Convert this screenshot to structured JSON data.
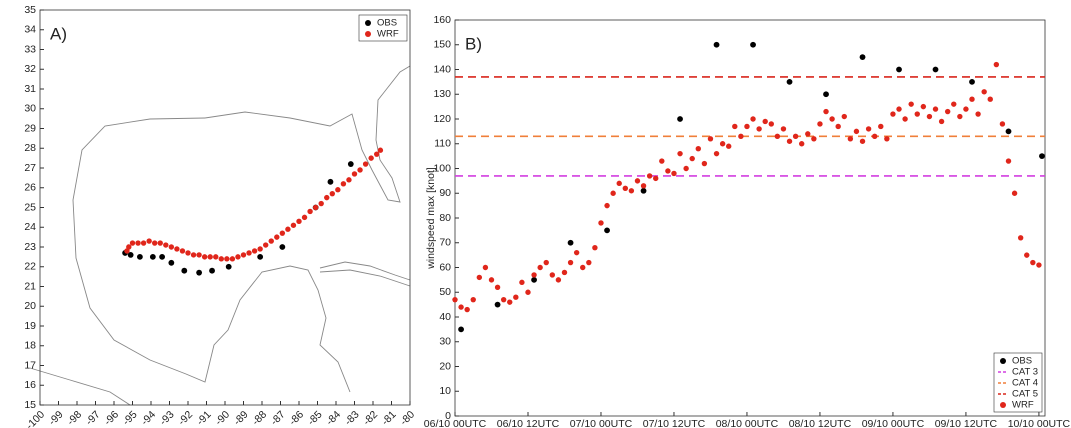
{
  "chart_data": [
    {
      "type": "scatter",
      "panel_label": "A)",
      "xlim": [
        -100,
        -80
      ],
      "ylim": [
        15,
        35
      ],
      "xticks": [
        -100,
        -99,
        -98,
        -97,
        -96,
        -95,
        -94,
        -93,
        -92,
        -91,
        -90,
        -89,
        -88,
        -87,
        -86,
        -85,
        -84,
        -83,
        -82,
        -81,
        -80
      ],
      "yticks": [
        15,
        16,
        17,
        18,
        19,
        20,
        21,
        22,
        23,
        24,
        25,
        26,
        27,
        28,
        29,
        30,
        31,
        32,
        33,
        34,
        35
      ],
      "legend": "upper right",
      "series": [
        {
          "name": "OBS",
          "color": "#000000",
          "x": [
            -95.4,
            -95.1,
            -94.6,
            -93.9,
            -93.4,
            -92.9,
            -92.2,
            -91.4,
            -90.7,
            -89.8,
            -88.1,
            -86.9,
            -85.1,
            -84.3,
            -83.2
          ],
          "values": [
            22.7,
            22.6,
            22.5,
            22.5,
            22.5,
            22.2,
            21.8,
            21.7,
            21.8,
            22.0,
            22.5,
            23.0,
            25.0,
            26.3,
            27.2
          ]
        },
        {
          "name": "WRF",
          "color": "#e0261b",
          "x": [
            -95.3,
            -95.2,
            -95.0,
            -94.7,
            -94.4,
            -94.1,
            -93.8,
            -93.5,
            -93.2,
            -92.9,
            -92.6,
            -92.3,
            -92.0,
            -91.7,
            -91.4,
            -91.1,
            -90.8,
            -90.5,
            -90.2,
            -89.9,
            -89.6,
            -89.3,
            -89.0,
            -88.7,
            -88.4,
            -88.1,
            -87.8,
            -87.5,
            -87.2,
            -86.9,
            -86.6,
            -86.3,
            -86.0,
            -85.7,
            -85.4,
            -85.1,
            -84.8,
            -84.5,
            -84.2,
            -83.9,
            -83.6,
            -83.3,
            -83.0,
            -82.7,
            -82.4,
            -82.1,
            -81.8,
            -81.6
          ],
          "values": [
            22.8,
            23.0,
            23.2,
            23.2,
            23.2,
            23.3,
            23.2,
            23.2,
            23.1,
            23.0,
            22.9,
            22.8,
            22.7,
            22.6,
            22.6,
            22.5,
            22.5,
            22.5,
            22.4,
            22.4,
            22.4,
            22.5,
            22.6,
            22.7,
            22.8,
            22.9,
            23.1,
            23.3,
            23.5,
            23.7,
            23.9,
            24.1,
            24.3,
            24.5,
            24.8,
            25.0,
            25.2,
            25.5,
            25.7,
            25.9,
            26.2,
            26.4,
            26.7,
            26.9,
            27.2,
            27.5,
            27.7,
            27.9
          ]
        }
      ]
    },
    {
      "type": "scatter",
      "panel_label": "B)",
      "y_label": "windspeed max [knot]",
      "xlim": [
        0,
        97
      ],
      "ylim": [
        0,
        160
      ],
      "xticks": [
        {
          "value": 0,
          "label": "06/10 00UTC"
        },
        {
          "value": 12,
          "label": "06/10 12UTC"
        },
        {
          "value": 24,
          "label": "07/10 00UTC"
        },
        {
          "value": 36,
          "label": "07/10 12UTC"
        },
        {
          "value": 48,
          "label": "08/10 00UTC"
        },
        {
          "value": 60,
          "label": "08/10 12UTC"
        },
        {
          "value": 72,
          "label": "09/10 00UTC"
        },
        {
          "value": 84,
          "label": "09/10 12UTC"
        },
        {
          "value": 96,
          "label": "10/10 00UTC"
        }
      ],
      "yticks": [
        0,
        10,
        20,
        30,
        40,
        50,
        60,
        70,
        80,
        90,
        100,
        110,
        120,
        130,
        140,
        150,
        160
      ],
      "legend": "lower right",
      "series": [
        {
          "name": "OBS",
          "color": "#000000",
          "x": [
            1,
            7,
            13,
            19,
            25,
            31,
            37,
            43,
            49,
            55,
            61,
            67,
            73,
            79,
            85,
            91,
            96.5
          ],
          "values": [
            35,
            45,
            55,
            70,
            75,
            91,
            120,
            150,
            150,
            135,
            130,
            145,
            140,
            140,
            135,
            115,
            105
          ]
        },
        {
          "name": "CAT 3",
          "color": "#d23fe0",
          "style": "dashed",
          "values": [
            97
          ]
        },
        {
          "name": "CAT 4",
          "color": "#f07f3a",
          "style": "dashed",
          "values": [
            113
          ]
        },
        {
          "name": "CAT 5",
          "color": "#d9261c",
          "style": "dashed",
          "values": [
            137
          ]
        },
        {
          "name": "WRF",
          "color": "#e0261b",
          "x": [
            0,
            1,
            2,
            3,
            4,
            5,
            6,
            7,
            8,
            9,
            10,
            11,
            12,
            13,
            14,
            15,
            16,
            17,
            18,
            19,
            20,
            21,
            22,
            23,
            24,
            25,
            26,
            27,
            28,
            29,
            30,
            31,
            32,
            33,
            34,
            35,
            36,
            37,
            38,
            39,
            40,
            41,
            42,
            43,
            44,
            45,
            46,
            47,
            48,
            49,
            50,
            51,
            52,
            53,
            54,
            55,
            56,
            57,
            58,
            59,
            60,
            61,
            62,
            63,
            64,
            65,
            66,
            67,
            68,
            69,
            70,
            71,
            72,
            73,
            74,
            75,
            76,
            77,
            78,
            79,
            80,
            81,
            82,
            83,
            84,
            85,
            86,
            87,
            88,
            89,
            90,
            91,
            92,
            93,
            94,
            95,
            96
          ],
          "values": [
            47,
            44,
            43,
            47,
            56,
            60,
            55,
            52,
            47,
            46,
            48,
            54,
            50,
            57,
            60,
            62,
            57,
            55,
            58,
            62,
            66,
            60,
            62,
            68,
            78,
            85,
            90,
            94,
            92,
            91,
            95,
            93,
            97,
            96,
            103,
            99,
            98,
            106,
            100,
            104,
            108,
            102,
            112,
            106,
            110,
            109,
            117,
            113,
            117,
            120,
            116,
            119,
            118,
            113,
            116,
            111,
            113,
            110,
            114,
            112,
            118,
            123,
            120,
            117,
            121,
            112,
            115,
            111,
            116,
            113,
            117,
            112,
            122,
            124,
            120,
            126,
            122,
            125,
            121,
            124,
            119,
            123,
            126,
            121,
            124,
            128,
            122,
            131,
            128,
            142,
            118,
            103,
            90,
            72,
            65,
            62,
            61
          ]
        }
      ]
    }
  ]
}
